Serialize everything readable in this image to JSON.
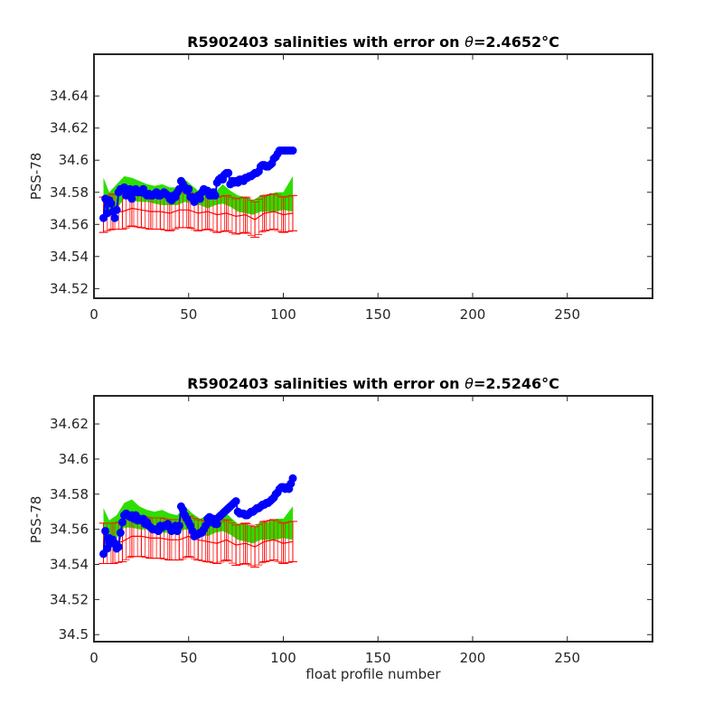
{
  "colors": {
    "float": "#0000ff",
    "climatology": "#ff0000",
    "envelope": "#00ff00",
    "overlap": "#80a000",
    "axes": "#262626"
  },
  "chart_data": [
    {
      "type": "line",
      "title_prefix": "R5902403 salinities with error on ",
      "title_theta": "θ",
      "title_value": "=2.4652",
      "title_unit": "°C",
      "xlabel": "",
      "ylabel": "PSS-78",
      "xlim": [
        0,
        295
      ],
      "ylim": [
        34.514,
        34.666
      ],
      "xticks": [
        0,
        50,
        100,
        150,
        200,
        250
      ],
      "yticks": [
        34.52,
        34.54,
        34.56,
        34.58,
        34.6,
        34.62,
        34.64
      ],
      "ytick_labels": [
        "34.52",
        "34.54",
        "34.56",
        "34.58",
        "34.6",
        "34.62",
        "34.64"
      ],
      "error_half_width": 0.011,
      "series": [
        {
          "role": "float",
          "x": [
            5,
            6,
            7,
            8,
            9,
            10,
            11,
            12,
            13,
            14,
            15,
            16,
            17,
            18,
            19,
            20,
            21,
            22,
            23,
            24,
            25,
            26,
            27,
            28,
            29,
            30,
            31,
            32,
            33,
            34,
            35,
            36,
            37,
            38,
            39,
            40,
            41,
            42,
            43,
            44,
            45,
            46,
            47,
            48,
            49,
            50,
            51,
            52,
            53,
            54,
            55,
            56,
            57,
            58,
            59,
            60,
            61,
            62,
            63,
            64,
            65,
            66,
            67,
            68,
            69,
            70,
            71,
            72,
            73,
            74,
            75,
            76,
            77,
            78,
            79,
            80,
            81,
            82,
            83,
            84,
            85,
            86,
            87,
            88,
            89,
            90,
            91,
            92,
            93,
            94,
            95,
            96,
            97,
            98,
            99,
            100,
            101,
            102,
            103,
            104,
            105
          ],
          "y": [
            34.564,
            34.576,
            34.567,
            34.575,
            34.573,
            34.568,
            34.564,
            34.569,
            34.58,
            34.582,
            34.582,
            34.583,
            34.578,
            34.581,
            34.582,
            34.576,
            34.58,
            34.582,
            34.58,
            34.58,
            34.58,
            34.582,
            34.579,
            34.578,
            34.579,
            34.578,
            34.578,
            34.579,
            34.58,
            34.578,
            34.578,
            34.579,
            34.58,
            34.579,
            34.578,
            34.576,
            34.575,
            34.578,
            34.577,
            34.58,
            34.582,
            34.587,
            34.585,
            34.583,
            34.581,
            34.582,
            34.577,
            34.577,
            34.574,
            34.576,
            34.578,
            34.576,
            34.58,
            34.582,
            34.581,
            34.581,
            34.578,
            34.578,
            34.58,
            34.578,
            34.586,
            34.588,
            34.589,
            34.588,
            34.591,
            34.592,
            34.592,
            34.585,
            34.587,
            34.586,
            34.587,
            34.586,
            34.588,
            34.588,
            34.587,
            34.589,
            34.589,
            34.59,
            34.59,
            34.591,
            34.592,
            34.592,
            34.593,
            34.596,
            34.597,
            34.597,
            34.596,
            34.596,
            34.597,
            34.598,
            34.601,
            34.602,
            34.604,
            34.606,
            34.606,
            34.606,
            34.606,
            34.606,
            34.606,
            34.606,
            34.606
          ]
        },
        {
          "role": "climatology",
          "x": [
            5,
            10,
            15,
            20,
            25,
            30,
            35,
            40,
            45,
            50,
            55,
            60,
            65,
            70,
            75,
            80,
            85,
            90,
            95,
            100,
            105
          ],
          "y": [
            34.566,
            34.568,
            34.568,
            34.57,
            34.569,
            34.568,
            34.568,
            34.567,
            34.569,
            34.569,
            34.567,
            34.568,
            34.566,
            34.567,
            34.565,
            34.566,
            34.563,
            34.567,
            34.568,
            34.566,
            34.567
          ]
        },
        {
          "role": "envelope",
          "x": [
            5,
            8,
            12,
            16,
            20,
            24,
            28,
            32,
            36,
            40,
            44,
            48,
            52,
            56,
            60,
            64,
            68,
            72,
            76,
            80,
            84,
            88,
            92,
            96,
            100,
            105
          ],
          "upper": [
            34.589,
            34.58,
            34.585,
            34.59,
            34.589,
            34.587,
            34.585,
            34.584,
            34.585,
            34.583,
            34.583,
            34.588,
            34.584,
            34.58,
            34.582,
            34.58,
            34.585,
            34.581,
            34.578,
            34.577,
            34.575,
            34.578,
            34.578,
            34.58,
            34.58,
            34.59
          ],
          "lower": [
            34.565,
            34.565,
            34.57,
            34.576,
            34.575,
            34.574,
            34.574,
            34.573,
            34.572,
            34.572,
            34.572,
            34.574,
            34.573,
            34.572,
            34.57,
            34.572,
            34.573,
            34.571,
            34.568,
            34.567,
            34.566,
            34.568,
            34.568,
            34.568,
            34.569,
            34.568
          ]
        }
      ]
    },
    {
      "type": "line",
      "title_prefix": "R5902403 salinities with error on ",
      "title_theta": "θ",
      "title_value": "=2.5246",
      "title_unit": "°C",
      "xlabel": "float profile number",
      "ylabel": "PSS-78",
      "xlim": [
        0,
        295
      ],
      "ylim": [
        34.496,
        34.636
      ],
      "xticks": [
        0,
        50,
        100,
        150,
        200,
        250
      ],
      "yticks": [
        34.5,
        34.52,
        34.54,
        34.56,
        34.58,
        34.6,
        34.62
      ],
      "ytick_labels": [
        "34.5",
        "34.52",
        "34.54",
        "34.56",
        "34.58",
        "34.6",
        "34.62"
      ],
      "error_half_width": 0.0115,
      "series": [
        {
          "role": "float",
          "x": [
            5,
            6,
            7,
            8,
            9,
            10,
            11,
            12,
            13,
            14,
            15,
            16,
            17,
            18,
            19,
            20,
            21,
            22,
            23,
            24,
            25,
            26,
            27,
            28,
            29,
            30,
            31,
            32,
            33,
            34,
            35,
            36,
            37,
            38,
            39,
            40,
            41,
            42,
            43,
            44,
            45,
            46,
            47,
            48,
            49,
            50,
            51,
            52,
            53,
            54,
            55,
            56,
            57,
            58,
            59,
            60,
            61,
            62,
            63,
            64,
            65,
            66,
            67,
            68,
            69,
            70,
            71,
            72,
            73,
            74,
            75,
            76,
            77,
            78,
            79,
            80,
            81,
            82,
            83,
            84,
            85,
            86,
            87,
            88,
            89,
            90,
            91,
            92,
            93,
            94,
            95,
            96,
            97,
            98,
            99,
            100,
            101,
            102,
            103,
            104,
            105
          ],
          "y": [
            34.546,
            34.559,
            34.549,
            34.555,
            34.552,
            34.554,
            34.552,
            34.549,
            34.55,
            34.558,
            34.564,
            34.568,
            34.569,
            34.568,
            34.567,
            34.568,
            34.566,
            34.568,
            34.565,
            34.566,
            34.565,
            34.566,
            34.563,
            34.564,
            34.562,
            34.561,
            34.56,
            34.56,
            34.56,
            34.559,
            34.562,
            34.561,
            34.562,
            34.562,
            34.563,
            34.561,
            34.559,
            34.561,
            34.562,
            34.559,
            34.562,
            34.573,
            34.571,
            34.568,
            34.566,
            34.564,
            34.562,
            34.559,
            34.556,
            34.557,
            34.557,
            34.558,
            34.558,
            34.56,
            34.562,
            34.566,
            34.567,
            34.564,
            34.566,
            34.563,
            34.563,
            34.567,
            34.568,
            34.569,
            34.57,
            34.571,
            34.572,
            34.573,
            34.574,
            34.575,
            34.576,
            34.57,
            34.569,
            34.569,
            34.569,
            34.568,
            34.568,
            34.569,
            34.57,
            34.57,
            34.571,
            34.572,
            34.572,
            34.573,
            34.574,
            34.574,
            34.575,
            34.575,
            34.576,
            34.577,
            34.578,
            34.58,
            34.581,
            34.583,
            34.584,
            34.584,
            34.583,
            34.584,
            34.583,
            34.586,
            34.589
          ]
        },
        {
          "role": "climatology",
          "x": [
            5,
            10,
            15,
            20,
            25,
            30,
            35,
            40,
            45,
            50,
            55,
            60,
            65,
            70,
            75,
            80,
            85,
            90,
            95,
            100,
            105
          ],
          "y": [
            34.552,
            34.552,
            34.553,
            34.556,
            34.556,
            34.555,
            34.555,
            34.554,
            34.554,
            34.556,
            34.554,
            34.553,
            34.552,
            34.554,
            34.551,
            34.552,
            34.55,
            34.553,
            34.554,
            34.552,
            34.553
          ]
        },
        {
          "role": "envelope",
          "x": [
            5,
            8,
            12,
            16,
            20,
            24,
            28,
            32,
            36,
            40,
            44,
            48,
            52,
            56,
            60,
            64,
            68,
            72,
            76,
            80,
            84,
            88,
            92,
            96,
            100,
            105
          ],
          "upper": [
            34.572,
            34.565,
            34.568,
            34.575,
            34.577,
            34.573,
            34.571,
            34.57,
            34.571,
            34.569,
            34.568,
            34.573,
            34.569,
            34.566,
            34.568,
            34.566,
            34.571,
            34.567,
            34.563,
            34.563,
            34.561,
            34.564,
            34.564,
            34.566,
            34.566,
            34.573
          ],
          "lower": [
            34.55,
            34.55,
            34.555,
            34.561,
            34.561,
            34.56,
            34.56,
            34.559,
            34.558,
            34.558,
            34.558,
            34.56,
            34.559,
            34.558,
            34.556,
            34.558,
            34.559,
            34.557,
            34.554,
            34.553,
            34.552,
            34.554,
            34.554,
            34.554,
            34.555,
            34.554
          ]
        }
      ]
    }
  ]
}
